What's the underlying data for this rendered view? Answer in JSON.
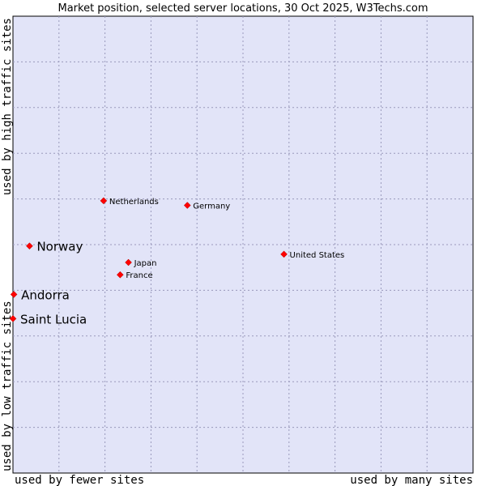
{
  "chart_data": {
    "type": "scatter",
    "title": "Market position, selected server locations, 30 Oct 2025, W3Techs.com",
    "xlabel_left": "used by fewer sites",
    "xlabel_right": "used by many sites",
    "ylabel_bottom": "used by low traffic sites",
    "ylabel_top": "used by high traffic sites",
    "xlim": [
      0,
      100
    ],
    "ylim": [
      0,
      100
    ],
    "grid": true,
    "points": [
      {
        "label": "Netherlands",
        "x": 19.7,
        "y": 59.6,
        "size": "small"
      },
      {
        "label": "Germany",
        "x": 37.9,
        "y": 58.6,
        "size": "small"
      },
      {
        "label": "Norway",
        "x": 3.6,
        "y": 49.7,
        "size": "large"
      },
      {
        "label": "United States",
        "x": 58.9,
        "y": 47.9,
        "size": "small"
      },
      {
        "label": "Japan",
        "x": 25.1,
        "y": 46.1,
        "size": "small"
      },
      {
        "label": "France",
        "x": 23.3,
        "y": 43.4,
        "size": "small"
      },
      {
        "label": "Andorra",
        "x": 0.2,
        "y": 39.1,
        "size": "large"
      },
      {
        "label": "Saint Lucia",
        "x": 0.0,
        "y": 33.8,
        "size": "large"
      }
    ]
  }
}
